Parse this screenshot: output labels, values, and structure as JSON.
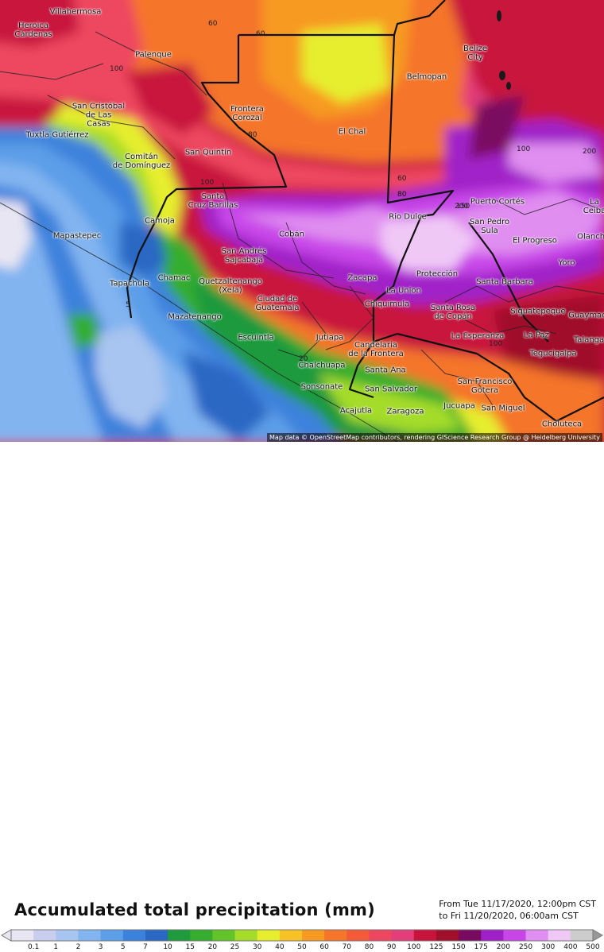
{
  "title": "Accumulated total precipitation (mm)",
  "valid_from": "From Tue 11/17/2020, 12:00pm CST",
  "valid_to": "to Fri 11/20/2020, 06:00am CST",
  "attribution": "Map data © OpenStreetMap contributors, rendering GIScience Research Group @ Heidelberg University",
  "legend_ticks": [
    "0.1",
    "1",
    "2",
    "3",
    "5",
    "7",
    "10",
    "15",
    "20",
    "25",
    "30",
    "40",
    "50",
    "60",
    "70",
    "80",
    "90",
    "100",
    "125",
    "150",
    "175",
    "200",
    "250",
    "300",
    "400",
    "500"
  ],
  "legend_colors": [
    "#e8e6f2",
    "#c9cdee",
    "#a8c4f0",
    "#82b4f0",
    "#5c9ee8",
    "#3c82dc",
    "#2a68c4",
    "#1f9a3c",
    "#36ad2e",
    "#63c42a",
    "#a5dc2a",
    "#e6ee2e",
    "#f6c226",
    "#f79a22",
    "#f5752a",
    "#f25a3a",
    "#ee4660",
    "#e33d7a",
    "#c8143c",
    "#a0102a",
    "#7a0a60",
    "#a020c8",
    "#c846e8",
    "#e08ef0",
    "#f0c8f6",
    "#cccccc"
  ],
  "places": [
    {
      "name": "Villahermosa"
    },
    {
      "name": "Heroica\nCárdenas"
    },
    {
      "name": "Palenque"
    },
    {
      "name": "San Cristóbal\nde Las\nCasas"
    },
    {
      "name": "Tuxtla Gutiérrez"
    },
    {
      "name": "Comitán\nde Domínguez"
    },
    {
      "name": "Frontera\nCorozal"
    },
    {
      "name": "El Chal"
    },
    {
      "name": "San Quintín"
    },
    {
      "name": "Belize\nCity"
    },
    {
      "name": "Belmopan"
    },
    {
      "name": "Santa\nCruz Barillas"
    },
    {
      "name": "Camoja"
    },
    {
      "name": "Mapastepec"
    },
    {
      "name": "Cobán"
    },
    {
      "name": "San Andrés\nSajcabajá"
    },
    {
      "name": "Tapachula"
    },
    {
      "name": "Chamac"
    },
    {
      "name": "Quetzaltenango\n(Xela)"
    },
    {
      "name": "Ciudad de\nGuatemala"
    },
    {
      "name": "Mazatenango"
    },
    {
      "name": "Escuintla"
    },
    {
      "name": "Rio Dulce"
    },
    {
      "name": "Puerto Cortés"
    },
    {
      "name": "San Pedro\nSula"
    },
    {
      "name": "El Progreso"
    },
    {
      "name": "La Ceiba"
    },
    {
      "name": "Yoro"
    },
    {
      "name": "Zacapa"
    },
    {
      "name": "Protección"
    },
    {
      "name": "La Union"
    },
    {
      "name": "Santa Barbara"
    },
    {
      "name": "Chiquimula"
    },
    {
      "name": "Santa Rosa\nde Copán"
    },
    {
      "name": "Siguatepeque"
    },
    {
      "name": "La Esperanza"
    },
    {
      "name": "La Paz"
    },
    {
      "name": "Tegucigalpa"
    },
    {
      "name": "Jutiapa"
    },
    {
      "name": "Candelaria\nde la Frontera"
    },
    {
      "name": "Chalchuapa"
    },
    {
      "name": "Santa Ana"
    },
    {
      "name": "Sonsonate"
    },
    {
      "name": "San Salvador"
    },
    {
      "name": "Acajutla"
    },
    {
      "name": "Zaragoza"
    },
    {
      "name": "Jucuapa"
    },
    {
      "name": "San Miguel"
    },
    {
      "name": "San Francisco\nGotera"
    },
    {
      "name": "Choluteca"
    },
    {
      "name": "Talanga"
    },
    {
      "name": "Guaymaca"
    },
    {
      "name": "Olanchito"
    }
  ],
  "contour_labels": [
    "60",
    "60",
    "80",
    "100",
    "100",
    "80",
    "100",
    "150",
    "200",
    "60",
    "80",
    "200",
    "100",
    "5",
    "20"
  ]
}
